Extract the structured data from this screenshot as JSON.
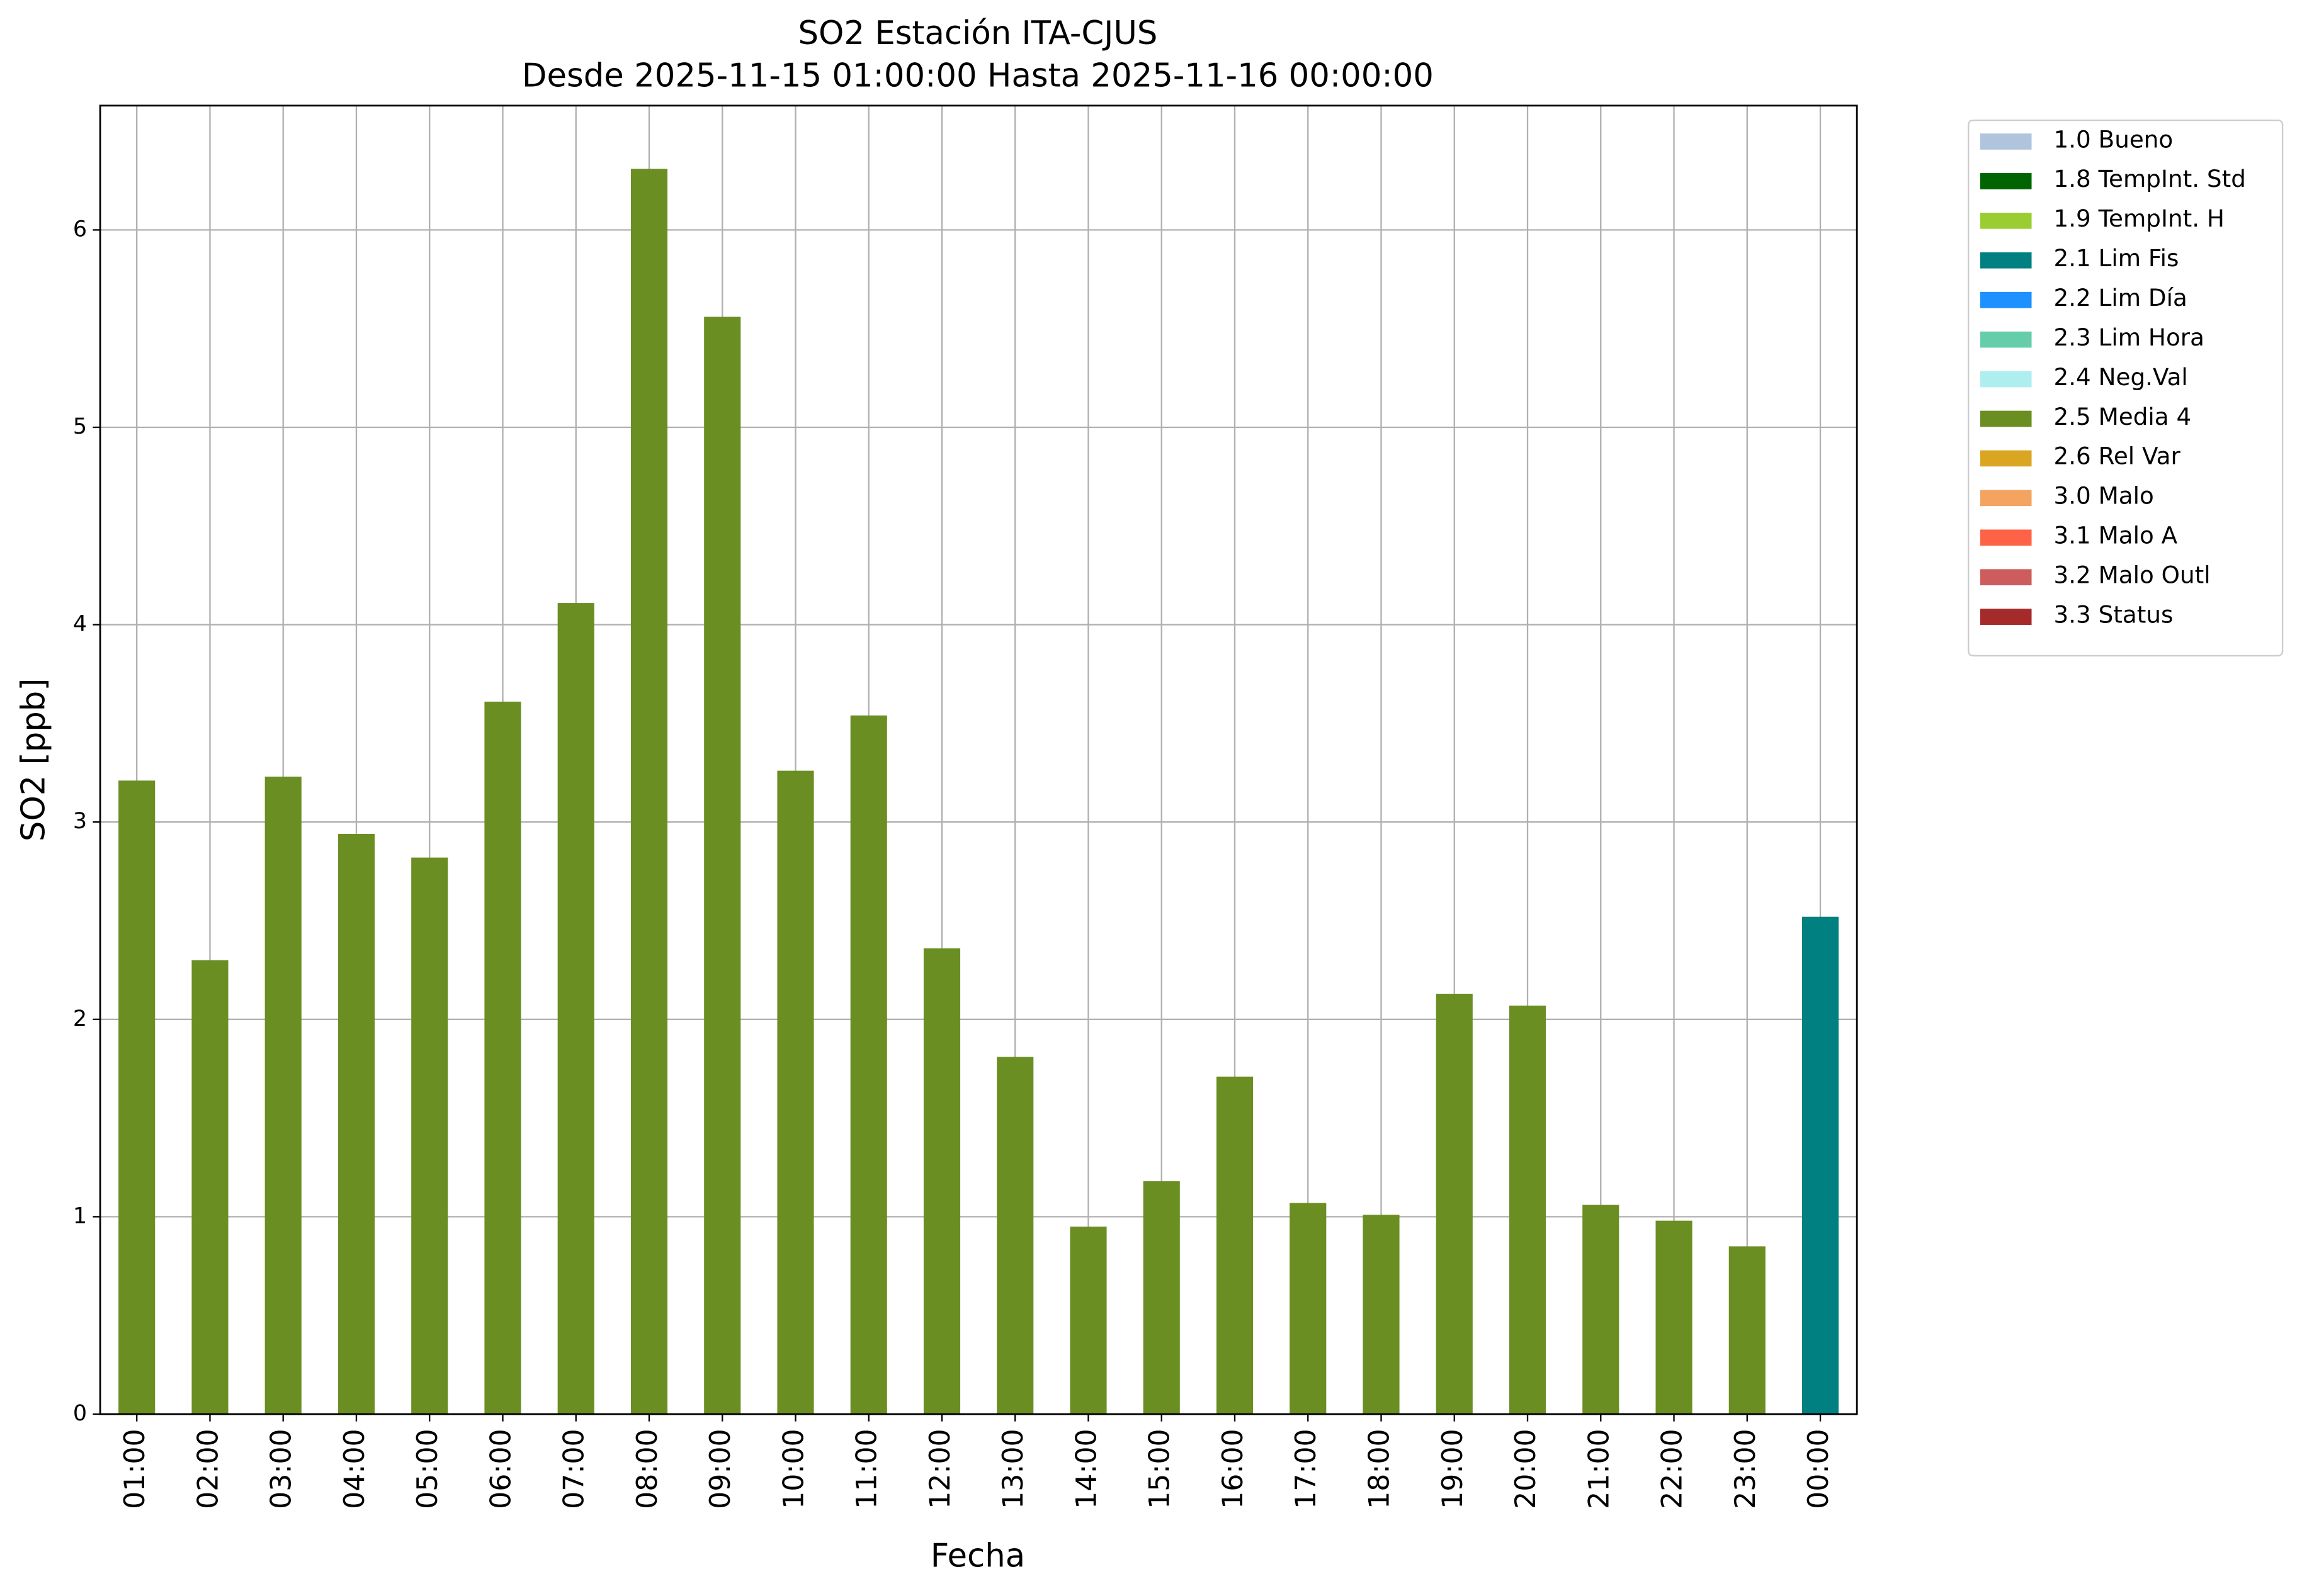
{
  "chart_data": {
    "type": "bar",
    "title": "SO2 Estación ITA-CJUS",
    "subtitle": "Desde 2025-11-15 01:00:00 Hasta 2025-11-16 00:00:00",
    "x_label": "Fecha",
    "y_label": "SO2 [ppb]",
    "categories": [
      "01:00",
      "02:00",
      "03:00",
      "04:00",
      "05:00",
      "06:00",
      "07:00",
      "08:00",
      "09:00",
      "10:00",
      "11:00",
      "12:00",
      "13:00",
      "14:00",
      "15:00",
      "16:00",
      "17:00",
      "18:00",
      "19:00",
      "20:00",
      "21:00",
      "22:00",
      "23:00",
      "00:00"
    ],
    "series": [
      {
        "name": "1.0 Bueno",
        "color": "#b0c4de",
        "values": [
          null,
          null,
          null,
          null,
          null,
          null,
          null,
          null,
          null,
          null,
          null,
          null,
          null,
          null,
          null,
          null,
          null,
          null,
          null,
          null,
          null,
          null,
          null,
          null
        ]
      },
      {
        "name": "1.8 TempInt. Std",
        "color": "#006400",
        "values": [
          null,
          null,
          null,
          null,
          null,
          null,
          null,
          null,
          null,
          null,
          null,
          null,
          null,
          null,
          null,
          null,
          null,
          null,
          null,
          null,
          null,
          null,
          null,
          null
        ]
      },
      {
        "name": "1.9 TempInt. H",
        "color": "#9acd32",
        "values": [
          null,
          null,
          null,
          null,
          null,
          null,
          null,
          null,
          null,
          null,
          null,
          null,
          null,
          null,
          null,
          null,
          null,
          null,
          null,
          null,
          null,
          null,
          null,
          null
        ]
      },
      {
        "name": "2.1 Lim Fis",
        "color": "#008080",
        "values": [
          null,
          null,
          null,
          null,
          null,
          null,
          null,
          null,
          null,
          null,
          null,
          null,
          null,
          null,
          null,
          null,
          null,
          null,
          null,
          null,
          null,
          null,
          null,
          2.52
        ]
      },
      {
        "name": "2.2 Lim Día",
        "color": "#1e90ff",
        "values": [
          null,
          null,
          null,
          null,
          null,
          null,
          null,
          null,
          null,
          null,
          null,
          null,
          null,
          null,
          null,
          null,
          null,
          null,
          null,
          null,
          null,
          null,
          null,
          null
        ]
      },
      {
        "name": "2.3 Lim Hora",
        "color": "#66cdaa",
        "values": [
          null,
          null,
          null,
          null,
          null,
          null,
          null,
          null,
          null,
          null,
          null,
          null,
          null,
          null,
          null,
          null,
          null,
          null,
          null,
          null,
          null,
          null,
          null,
          null
        ]
      },
      {
        "name": "2.4 Neg.Val",
        "color": "#afeeee",
        "values": [
          null,
          null,
          null,
          null,
          null,
          null,
          null,
          null,
          null,
          null,
          null,
          null,
          null,
          null,
          null,
          null,
          null,
          null,
          null,
          null,
          null,
          null,
          null,
          null
        ]
      },
      {
        "name": "2.5 Media 4",
        "color": "#6b8e23",
        "values": [
          3.21,
          2.3,
          3.23,
          2.94,
          2.82,
          3.61,
          4.11,
          6.31,
          5.56,
          3.26,
          3.54,
          2.36,
          1.81,
          0.95,
          1.18,
          1.71,
          1.07,
          1.01,
          2.13,
          2.07,
          1.06,
          0.98,
          0.85,
          null
        ]
      },
      {
        "name": "2.6 Rel Var",
        "color": "#daa520",
        "values": [
          null,
          null,
          null,
          null,
          null,
          null,
          null,
          null,
          null,
          null,
          null,
          null,
          null,
          null,
          null,
          null,
          null,
          null,
          null,
          null,
          null,
          null,
          null,
          null
        ]
      },
      {
        "name": "3.0 Malo",
        "color": "#f4a460",
        "values": [
          null,
          null,
          null,
          null,
          null,
          null,
          null,
          null,
          null,
          null,
          null,
          null,
          null,
          null,
          null,
          null,
          null,
          null,
          null,
          null,
          null,
          null,
          null,
          null
        ]
      },
      {
        "name": "3.1 Malo A",
        "color": "#ff6347",
        "values": [
          null,
          null,
          null,
          null,
          null,
          null,
          null,
          null,
          null,
          null,
          null,
          null,
          null,
          null,
          null,
          null,
          null,
          null,
          null,
          null,
          null,
          null,
          null,
          null
        ]
      },
      {
        "name": "3.2 Malo Outl",
        "color": "#cd5c5c",
        "values": [
          null,
          null,
          null,
          null,
          null,
          null,
          null,
          null,
          null,
          null,
          null,
          null,
          null,
          null,
          null,
          null,
          null,
          null,
          null,
          null,
          null,
          null,
          null,
          null
        ]
      },
      {
        "name": "3.3 Status",
        "color": "#a52a2a",
        "values": [
          null,
          null,
          null,
          null,
          null,
          null,
          null,
          null,
          null,
          null,
          null,
          null,
          null,
          null,
          null,
          null,
          null,
          null,
          null,
          null,
          null,
          null,
          null,
          null
        ]
      }
    ],
    "stacked": true,
    "ylim": [
      0,
      6.63
    ],
    "yticks": [
      0,
      1,
      2,
      3,
      4,
      5,
      6
    ],
    "grid": true,
    "legend": "outside-upper-right"
  }
}
